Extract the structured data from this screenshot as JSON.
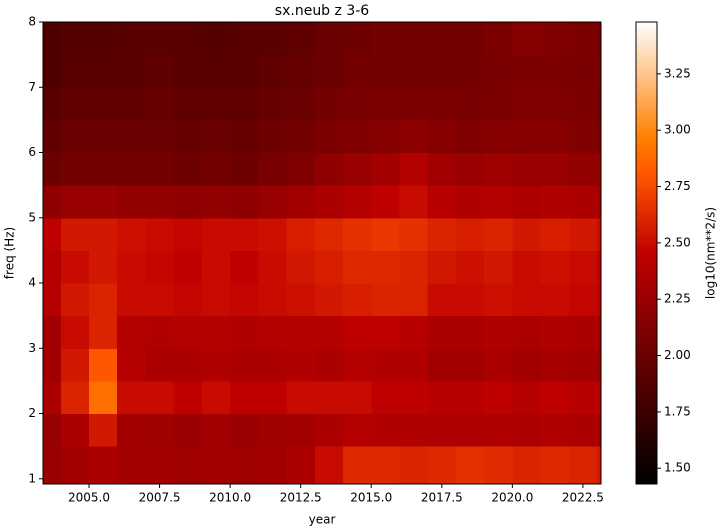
{
  "chart_data": {
    "type": "heatmap",
    "title": "sx.neub z 3-6",
    "x_label": "year",
    "y_label": "freq (Hz)",
    "colorbar_label": "log10(nm**2/s)",
    "colormap": "gist_heat",
    "xlim": [
      2003.37,
      2023.14
    ],
    "ylim": [
      0.92,
      8
    ],
    "clim": [
      1.43,
      3.48
    ],
    "xticks": [
      {
        "value": 2005,
        "label": "2005.0"
      },
      {
        "value": 2007.5,
        "label": "2007.5"
      },
      {
        "value": 2010,
        "label": "2010.0"
      },
      {
        "value": 2012.5,
        "label": "2012.5"
      },
      {
        "value": 2015,
        "label": "2015.0"
      },
      {
        "value": 2017.5,
        "label": "2017.5"
      },
      {
        "value": 2020,
        "label": "2020.0"
      },
      {
        "value": 2022.5,
        "label": "2022.5"
      }
    ],
    "yticks": [
      1,
      2,
      3,
      4,
      5,
      6,
      7,
      8
    ],
    "cticks": [
      {
        "value": 1.5,
        "label": "1.50"
      },
      {
        "value": 1.75,
        "label": "1.75"
      },
      {
        "value": 2,
        "label": "2.00"
      },
      {
        "value": 2.25,
        "label": "2.25"
      },
      {
        "value": 2.5,
        "label": "2.50"
      },
      {
        "value": 2.75,
        "label": "2.75"
      },
      {
        "value": 3,
        "label": "3.00"
      },
      {
        "value": 3.25,
        "label": "3.25"
      }
    ],
    "xbins": [
      2003.37,
      2004,
      2005,
      2006,
      2007,
      2008,
      2009,
      2010,
      2011,
      2012,
      2013,
      2014,
      2015,
      2016,
      2017,
      2018,
      2019,
      2020,
      2021,
      2022,
      2023,
      2023.14
    ],
    "ybins": [
      0.92,
      1.5,
      2,
      2.5,
      3,
      3.5,
      4,
      4.5,
      5,
      5.5,
      6,
      6.5,
      7,
      7.5,
      8
    ],
    "z": [
      [
        2.25,
        2.3,
        2.35,
        2.3,
        2.3,
        2.28,
        2.3,
        2.28,
        2.3,
        2.35,
        2.5,
        2.62,
        2.62,
        2.6,
        2.62,
        2.65,
        2.63,
        2.6,
        2.62,
        2.6,
        2.55
      ],
      [
        2.25,
        2.35,
        2.55,
        2.3,
        2.28,
        2.25,
        2.3,
        2.25,
        2.28,
        2.3,
        2.35,
        2.4,
        2.38,
        2.38,
        2.36,
        2.36,
        2.38,
        2.35,
        2.38,
        2.35,
        2.3
      ],
      [
        2.35,
        2.6,
        2.9,
        2.5,
        2.5,
        2.45,
        2.5,
        2.45,
        2.45,
        2.5,
        2.5,
        2.5,
        2.45,
        2.45,
        2.42,
        2.42,
        2.45,
        2.4,
        2.45,
        2.42,
        2.4
      ],
      [
        2.3,
        2.55,
        2.8,
        2.4,
        2.35,
        2.35,
        2.38,
        2.35,
        2.35,
        2.38,
        2.35,
        2.4,
        2.38,
        2.38,
        2.3,
        2.3,
        2.35,
        2.3,
        2.32,
        2.3,
        2.25
      ],
      [
        2.3,
        2.5,
        2.6,
        2.4,
        2.38,
        2.4,
        2.4,
        2.38,
        2.4,
        2.4,
        2.4,
        2.45,
        2.45,
        2.42,
        2.35,
        2.35,
        2.38,
        2.35,
        2.38,
        2.35,
        2.3
      ],
      [
        2.4,
        2.55,
        2.6,
        2.5,
        2.5,
        2.48,
        2.5,
        2.48,
        2.5,
        2.52,
        2.55,
        2.58,
        2.6,
        2.6,
        2.5,
        2.5,
        2.52,
        2.5,
        2.5,
        2.48,
        2.45
      ],
      [
        2.4,
        2.5,
        2.55,
        2.5,
        2.48,
        2.45,
        2.5,
        2.45,
        2.5,
        2.55,
        2.58,
        2.62,
        2.62,
        2.6,
        2.55,
        2.52,
        2.55,
        2.5,
        2.52,
        2.5,
        2.45
      ],
      [
        2.45,
        2.55,
        2.55,
        2.52,
        2.5,
        2.48,
        2.5,
        2.5,
        2.52,
        2.58,
        2.62,
        2.65,
        2.68,
        2.65,
        2.6,
        2.58,
        2.6,
        2.55,
        2.58,
        2.55,
        2.5
      ],
      [
        2.2,
        2.25,
        2.25,
        2.22,
        2.22,
        2.2,
        2.22,
        2.2,
        2.25,
        2.3,
        2.35,
        2.4,
        2.45,
        2.5,
        2.42,
        2.38,
        2.4,
        2.35,
        2.38,
        2.35,
        2.3
      ],
      [
        2.0,
        2.05,
        2.05,
        2.05,
        2.05,
        2.02,
        2.05,
        2.02,
        2.08,
        2.12,
        2.2,
        2.25,
        2.3,
        2.4,
        2.3,
        2.25,
        2.28,
        2.25,
        2.25,
        2.22,
        2.2
      ],
      [
        1.95,
        2.0,
        2.0,
        2.0,
        2.0,
        1.98,
        2.0,
        1.98,
        2.02,
        2.05,
        2.1,
        2.12,
        2.15,
        2.18,
        2.15,
        2.12,
        2.15,
        2.15,
        2.15,
        2.12,
        2.1
      ],
      [
        1.9,
        1.95,
        1.95,
        1.95,
        1.98,
        1.95,
        1.95,
        1.95,
        1.98,
        2.0,
        2.05,
        2.08,
        2.1,
        2.1,
        2.1,
        2.08,
        2.1,
        2.12,
        2.12,
        2.1,
        2.05
      ],
      [
        1.85,
        1.9,
        1.9,
        1.92,
        1.95,
        1.92,
        1.9,
        1.92,
        1.95,
        1.98,
        2.0,
        2.05,
        2.05,
        2.05,
        2.05,
        2.05,
        2.08,
        2.1,
        2.1,
        2.08,
        2.05
      ],
      [
        1.85,
        1.88,
        1.88,
        1.9,
        1.92,
        1.9,
        1.88,
        1.9,
        1.92,
        1.95,
        2.0,
        2.02,
        2.05,
        2.05,
        2.05,
        2.05,
        2.1,
        2.15,
        2.12,
        2.1,
        2.05
      ]
    ]
  }
}
